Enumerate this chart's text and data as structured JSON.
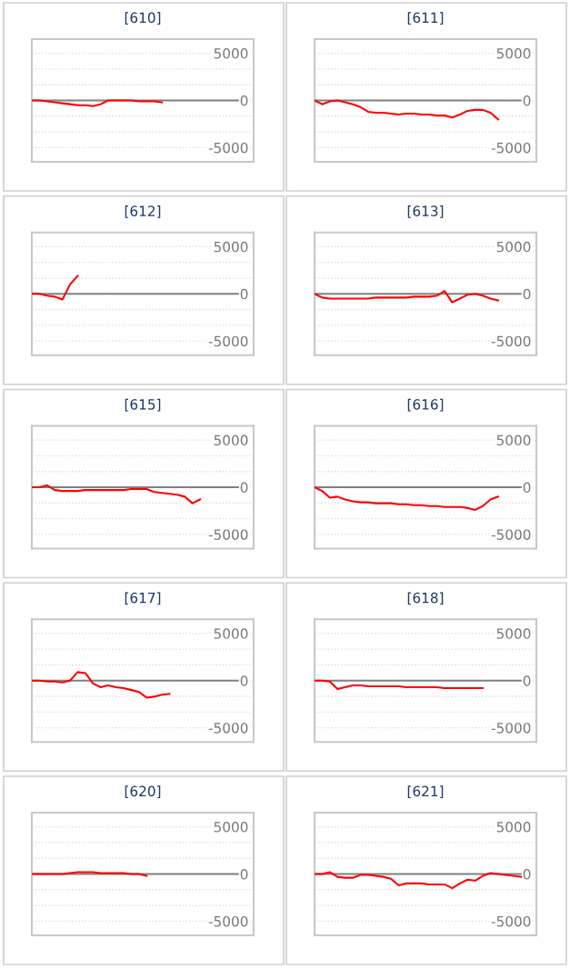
{
  "chart_data": [
    {
      "type": "line",
      "title": "[610]",
      "categories": [
        null,
        null,
        null,
        null,
        null,
        null,
        null,
        null,
        null,
        null,
        null,
        null,
        null,
        null,
        null,
        null,
        null,
        null,
        null,
        null,
        null,
        null,
        null,
        null,
        null,
        null,
        null,
        null,
        null,
        null
      ],
      "series": [
        {
          "color": "#ff0000",
          "values": [
            0,
            0,
            -100,
            -200,
            -300,
            -400,
            -500,
            -500,
            -600,
            -400,
            0,
            0,
            0,
            0,
            -100,
            -100,
            -100,
            -200,
            null,
            null,
            null,
            null,
            null,
            null,
            null,
            null,
            null,
            null,
            null,
            null
          ]
        }
      ],
      "ylim": [
        -6500,
        6500
      ],
      "yticks": [
        5000,
        {
          "value": 3333,
          "label": null
        },
        {
          "value": 1667,
          "label": null
        },
        0,
        {
          "value": -1667,
          "label": null
        },
        {
          "value": -3333,
          "label": null
        },
        -5000
      ],
      "grid": "y",
      "tick_labels": "y",
      "ref_lines": [
        {
          "axis": "y",
          "value": 0,
          "color": "#808080"
        }
      ]
    },
    {
      "type": "line",
      "title": "[611]",
      "categories": [
        null,
        null,
        null,
        null,
        null,
        null,
        null,
        null,
        null,
        null,
        null,
        null,
        null,
        null,
        null,
        null,
        null,
        null,
        null,
        null,
        null,
        null,
        null,
        null,
        null,
        null,
        null,
        null,
        null,
        null
      ],
      "series": [
        {
          "color": "#ff0000",
          "values": [
            0,
            -400,
            -100,
            0,
            -200,
            -400,
            -700,
            -1200,
            -1300,
            -1300,
            -1400,
            -1500,
            -1400,
            -1400,
            -1500,
            -1500,
            -1600,
            -1600,
            -1800,
            -1500,
            -1100,
            -1000,
            -1000,
            -1300,
            -2000,
            null,
            null,
            null,
            null,
            null
          ]
        }
      ],
      "ylim": [
        -6500,
        6500
      ],
      "yticks": [
        5000,
        {
          "value": 3333,
          "label": null
        },
        {
          "value": 1667,
          "label": null
        },
        0,
        {
          "value": -1667,
          "label": null
        },
        {
          "value": -3333,
          "label": null
        },
        -5000
      ],
      "grid": "y",
      "tick_labels": "y",
      "ref_lines": [
        {
          "axis": "y",
          "value": 0,
          "color": "#808080"
        }
      ]
    },
    {
      "type": "line",
      "title": "[612]",
      "categories": [
        null,
        null,
        null,
        null,
        null,
        null,
        null,
        null,
        null,
        null,
        null,
        null,
        null,
        null,
        null,
        null,
        null,
        null,
        null,
        null,
        null,
        null,
        null,
        null,
        null,
        null,
        null,
        null,
        null,
        null
      ],
      "series": [
        {
          "color": "#ff0000",
          "values": [
            0,
            0,
            -200,
            -300,
            -600,
            1000,
            1900,
            null,
            null,
            null,
            null,
            null,
            null,
            null,
            null,
            null,
            null,
            null,
            null,
            null,
            null,
            null,
            null,
            null,
            null,
            null,
            null,
            null,
            null,
            null
          ]
        }
      ],
      "ylim": [
        -6500,
        6500
      ],
      "yticks": [
        5000,
        {
          "value": 3333,
          "label": null
        },
        {
          "value": 1667,
          "label": null
        },
        0,
        {
          "value": -1667,
          "label": null
        },
        {
          "value": -3333,
          "label": null
        },
        -5000
      ],
      "grid": "y",
      "tick_labels": "y",
      "ref_lines": [
        {
          "axis": "y",
          "value": 0,
          "color": "#808080"
        }
      ]
    },
    {
      "type": "line",
      "title": "[613]",
      "categories": [
        null,
        null,
        null,
        null,
        null,
        null,
        null,
        null,
        null,
        null,
        null,
        null,
        null,
        null,
        null,
        null,
        null,
        null,
        null,
        null,
        null,
        null,
        null,
        null,
        null,
        null,
        null,
        null,
        null,
        null
      ],
      "series": [
        {
          "color": "#ff0000",
          "values": [
            0,
            -400,
            -500,
            -500,
            -500,
            -500,
            -500,
            -500,
            -400,
            -400,
            -400,
            -400,
            -400,
            -300,
            -300,
            -300,
            -200,
            300,
            -900,
            -500,
            -100,
            0,
            -200,
            -500,
            -700,
            null,
            null,
            null,
            null,
            null
          ]
        }
      ],
      "ylim": [
        -6500,
        6500
      ],
      "yticks": [
        5000,
        {
          "value": 3333,
          "label": null
        },
        {
          "value": 1667,
          "label": null
        },
        0,
        {
          "value": -1667,
          "label": null
        },
        {
          "value": -3333,
          "label": null
        },
        -5000
      ],
      "grid": "y",
      "tick_labels": "y",
      "ref_lines": [
        {
          "axis": "y",
          "value": 0,
          "color": "#808080"
        }
      ]
    },
    {
      "type": "line",
      "title": "[615]",
      "categories": [
        null,
        null,
        null,
        null,
        null,
        null,
        null,
        null,
        null,
        null,
        null,
        null,
        null,
        null,
        null,
        null,
        null,
        null,
        null,
        null,
        null,
        null,
        null,
        null,
        null,
        null,
        null,
        null,
        null,
        null
      ],
      "series": [
        {
          "color": "#ff0000",
          "values": [
            0,
            0,
            200,
            -300,
            -400,
            -400,
            -400,
            -300,
            -300,
            -300,
            -300,
            -300,
            -300,
            -200,
            -200,
            -200,
            -500,
            -600,
            -700,
            -800,
            -1000,
            -1700,
            -1300,
            null,
            null,
            null,
            null,
            null,
            null,
            null
          ]
        }
      ],
      "ylim": [
        -6500,
        6500
      ],
      "yticks": [
        5000,
        {
          "value": 3333,
          "label": null
        },
        {
          "value": 1667,
          "label": null
        },
        0,
        {
          "value": -1667,
          "label": null
        },
        {
          "value": -3333,
          "label": null
        },
        -5000
      ],
      "grid": "y",
      "tick_labels": "y",
      "ref_lines": [
        {
          "axis": "y",
          "value": 0,
          "color": "#808080"
        }
      ]
    },
    {
      "type": "line",
      "title": "[616]",
      "categories": [
        null,
        null,
        null,
        null,
        null,
        null,
        null,
        null,
        null,
        null,
        null,
        null,
        null,
        null,
        null,
        null,
        null,
        null,
        null,
        null,
        null,
        null,
        null,
        null,
        null,
        null,
        null,
        null,
        null,
        null
      ],
      "series": [
        {
          "color": "#ff0000",
          "values": [
            0,
            -400,
            -1100,
            -1000,
            -1300,
            -1500,
            -1600,
            -1600,
            -1700,
            -1700,
            -1700,
            -1800,
            -1800,
            -1900,
            -1900,
            -2000,
            -2000,
            -2100,
            -2100,
            -2100,
            -2200,
            -2400,
            -2000,
            -1300,
            -1000,
            null,
            null,
            null,
            null,
            null
          ]
        }
      ],
      "ylim": [
        -6500,
        6500
      ],
      "yticks": [
        5000,
        {
          "value": 3333,
          "label": null
        },
        {
          "value": 1667,
          "label": null
        },
        0,
        {
          "value": -1667,
          "label": null
        },
        {
          "value": -3333,
          "label": null
        },
        -5000
      ],
      "grid": "y",
      "tick_labels": "y",
      "ref_lines": [
        {
          "axis": "y",
          "value": 0,
          "color": "#808080"
        }
      ]
    },
    {
      "type": "line",
      "title": "[617]",
      "categories": [
        null,
        null,
        null,
        null,
        null,
        null,
        null,
        null,
        null,
        null,
        null,
        null,
        null,
        null,
        null,
        null,
        null,
        null,
        null,
        null,
        null,
        null,
        null,
        null,
        null,
        null,
        null,
        null,
        null,
        null
      ],
      "series": [
        {
          "color": "#ff0000",
          "values": [
            0,
            0,
            -100,
            -100,
            -200,
            0,
            900,
            800,
            -300,
            -700,
            -500,
            -700,
            -800,
            -1000,
            -1200,
            -1800,
            -1700,
            -1500,
            -1400,
            null,
            null,
            null,
            null,
            null,
            null,
            null,
            null,
            null,
            null,
            null
          ]
        }
      ],
      "ylim": [
        -6500,
        6500
      ],
      "yticks": [
        5000,
        {
          "value": 3333,
          "label": null
        },
        {
          "value": 1667,
          "label": null
        },
        0,
        {
          "value": -1667,
          "label": null
        },
        {
          "value": -3333,
          "label": null
        },
        -5000
      ],
      "grid": "y",
      "tick_labels": "y",
      "ref_lines": [
        {
          "axis": "y",
          "value": 0,
          "color": "#808080"
        }
      ]
    },
    {
      "type": "line",
      "title": "[618]",
      "categories": [
        null,
        null,
        null,
        null,
        null,
        null,
        null,
        null,
        null,
        null,
        null,
        null,
        null,
        null,
        null,
        null,
        null,
        null,
        null,
        null,
        null,
        null,
        null,
        null,
        null,
        null,
        null,
        null,
        null,
        null
      ],
      "series": [
        {
          "color": "#ff0000",
          "values": [
            0,
            0,
            -100,
            -900,
            -700,
            -500,
            -500,
            -600,
            -600,
            -600,
            -600,
            -600,
            -700,
            -700,
            -700,
            -700,
            -700,
            -800,
            -800,
            -800,
            -800,
            -800,
            -800,
            null,
            null,
            null,
            null,
            null,
            null,
            null
          ]
        }
      ],
      "ylim": [
        -6500,
        6500
      ],
      "yticks": [
        5000,
        {
          "value": 3333,
          "label": null
        },
        {
          "value": 1667,
          "label": null
        },
        0,
        {
          "value": -1667,
          "label": null
        },
        {
          "value": -3333,
          "label": null
        },
        -5000
      ],
      "grid": "y",
      "tick_labels": "y",
      "ref_lines": [
        {
          "axis": "y",
          "value": 0,
          "color": "#808080"
        }
      ]
    },
    {
      "type": "line",
      "title": "[620]",
      "categories": [
        null,
        null,
        null,
        null,
        null,
        null,
        null,
        null,
        null,
        null,
        null,
        null,
        null,
        null,
        null,
        null,
        null,
        null,
        null,
        null,
        null,
        null,
        null,
        null,
        null,
        null,
        null,
        null,
        null,
        null
      ],
      "series": [
        {
          "color": "#ff0000",
          "values": [
            0,
            0,
            0,
            0,
            0,
            100,
            200,
            200,
            200,
            100,
            100,
            100,
            100,
            0,
            0,
            -200,
            null,
            null,
            null,
            null,
            null,
            null,
            null,
            null,
            null,
            null,
            null,
            null,
            null,
            null
          ]
        }
      ],
      "ylim": [
        -6500,
        6500
      ],
      "yticks": [
        5000,
        {
          "value": 3333,
          "label": null
        },
        {
          "value": 1667,
          "label": null
        },
        0,
        {
          "value": -1667,
          "label": null
        },
        {
          "value": -3333,
          "label": null
        },
        -5000
      ],
      "grid": "y",
      "tick_labels": "y",
      "ref_lines": [
        {
          "axis": "y",
          "value": 0,
          "color": "#808080"
        }
      ]
    },
    {
      "type": "line",
      "title": "[621]",
      "categories": [
        null,
        null,
        null,
        null,
        null,
        null,
        null,
        null,
        null,
        null,
        null,
        null,
        null,
        null,
        null,
        null,
        null,
        null,
        null,
        null,
        null,
        null,
        null,
        null,
        null,
        null,
        null,
        null,
        null,
        null
      ],
      "series": [
        {
          "color": "#ff0000",
          "values": [
            0,
            0,
            200,
            -300,
            -400,
            -400,
            -100,
            -100,
            -200,
            -300,
            -500,
            -1200,
            -1000,
            -1000,
            -1000,
            -1100,
            -1100,
            -1100,
            -1500,
            -1000,
            -600,
            -700,
            -200,
            100,
            0,
            -100,
            -200,
            -300,
            null,
            null
          ]
        }
      ],
      "ylim": [
        -6500,
        6500
      ],
      "yticks": [
        5000,
        {
          "value": 3333,
          "label": null
        },
        {
          "value": 1667,
          "label": null
        },
        0,
        {
          "value": -1667,
          "label": null
        },
        {
          "value": -3333,
          "label": null
        },
        -5000
      ],
      "grid": "y",
      "tick_labels": "y",
      "ref_lines": [
        {
          "axis": "y",
          "value": 0,
          "color": "#808080"
        }
      ]
    }
  ]
}
